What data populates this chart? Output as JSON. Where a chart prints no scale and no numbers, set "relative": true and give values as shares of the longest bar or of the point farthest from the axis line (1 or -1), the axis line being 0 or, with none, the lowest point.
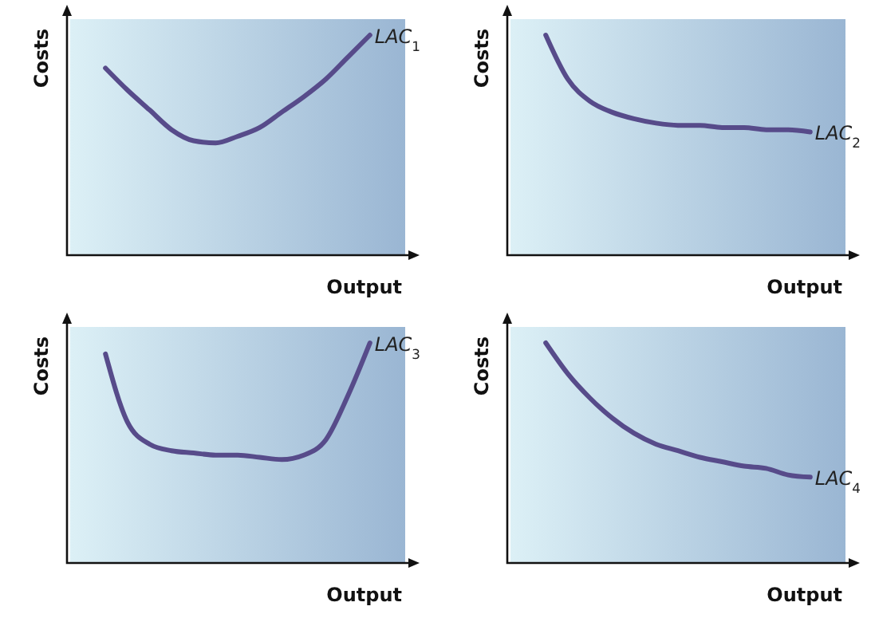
{
  "chart_data": [
    {
      "type": "line",
      "relative": true,
      "xlabel": "Output",
      "ylabel": "Costs",
      "categories": [
        null,
        null,
        null,
        null,
        null,
        null,
        null,
        null,
        null,
        null,
        null,
        null,
        null
      ],
      "series": [
        {
          "name": "LAC$_{1}$",
          "color": "#574b8a",
          "values": [
            0.85,
            0.75,
            0.66,
            0.57,
            0.52,
            0.51,
            0.54,
            0.58,
            0.65,
            0.72,
            0.8,
            0.9,
            1
          ]
        }
      ]
    },
    {
      "type": "line",
      "relative": true,
      "xlabel": "Output",
      "ylabel": "Costs",
      "categories": [
        null,
        null,
        null,
        null,
        null,
        null,
        null,
        null,
        null,
        null,
        null,
        null,
        null
      ],
      "series": [
        {
          "name": "LAC$_{2}$",
          "color": "#574b8a",
          "values": [
            1,
            0.8,
            0.7,
            0.65,
            0.62,
            0.6,
            0.59,
            0.59,
            0.58,
            0.58,
            0.57,
            0.57,
            0.56
          ]
        }
      ]
    },
    {
      "type": "line",
      "relative": true,
      "xlabel": "Output",
      "ylabel": "Costs",
      "categories": [
        null,
        null,
        null,
        null,
        null,
        null,
        null,
        null,
        null,
        null,
        null,
        null,
        null
      ],
      "series": [
        {
          "name": "LAC$_{3}$",
          "color": "#574b8a",
          "values": [
            0.95,
            0.64,
            0.54,
            0.51,
            0.5,
            0.49,
            0.49,
            0.48,
            0.47,
            0.49,
            0.56,
            0.76,
            1
          ]
        }
      ]
    },
    {
      "type": "line",
      "relative": true,
      "xlabel": "Output",
      "ylabel": "Costs",
      "categories": [
        null,
        null,
        null,
        null,
        null,
        null,
        null,
        null,
        null,
        null,
        null,
        null,
        null
      ],
      "series": [
        {
          "name": "LAC$_{4}$",
          "color": "#574b8a",
          "values": [
            1,
            0.86,
            0.75,
            0.66,
            0.59,
            0.54,
            0.51,
            0.48,
            0.46,
            0.44,
            0.43,
            0.4,
            0.39
          ]
        }
      ]
    }
  ]
}
